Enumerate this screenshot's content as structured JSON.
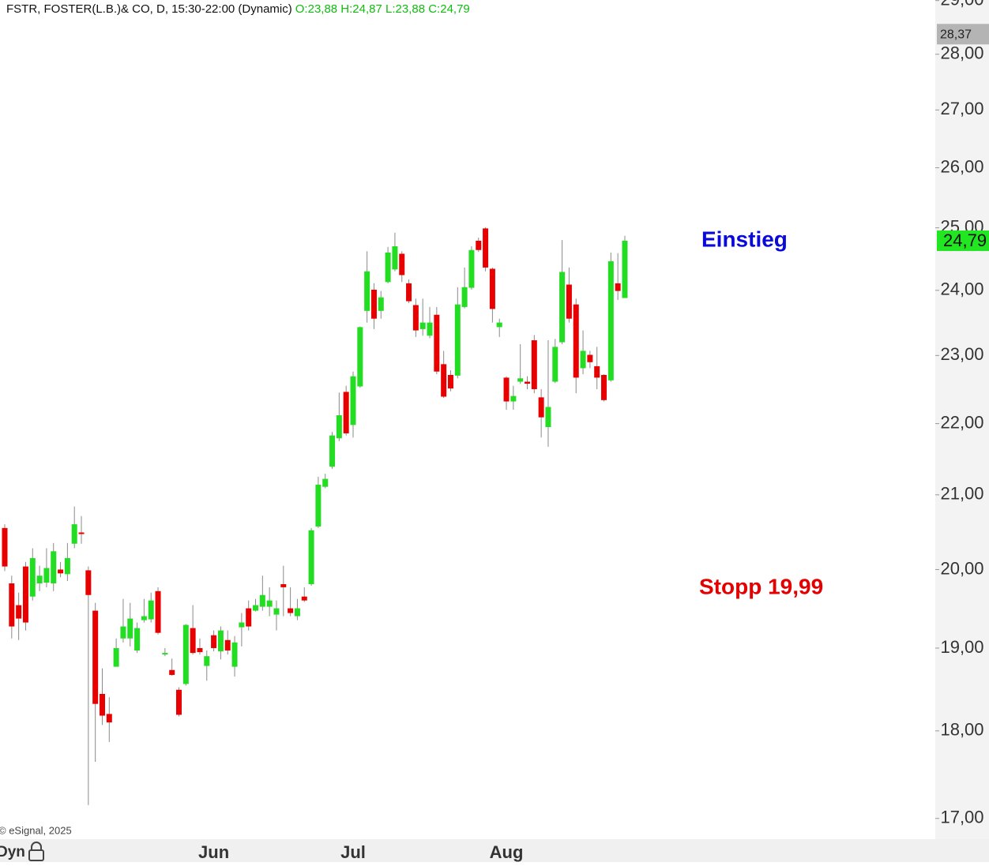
{
  "chart_data": {
    "type": "candlestick",
    "title": "FSTR, FOSTER(L.B.)& CO, D, 15:30-22:00 (Dynamic)",
    "ohlc_label": "O:23,88 H:24,87 L:23,88 C:24,79",
    "copyright": "© eSignal, 2025",
    "mode_label": "Dyn",
    "log_scale": true,
    "up_color": "#22dd22",
    "down_color": "#e80000",
    "categories": [
      null,
      null,
      null,
      null,
      null,
      null,
      null,
      null,
      null,
      null,
      null,
      null,
      null,
      null,
      null,
      null,
      null,
      null,
      null,
      null,
      null,
      null,
      null,
      null,
      null,
      null,
      null,
      null,
      null,
      null,
      "Jun",
      null,
      null,
      null,
      null,
      null,
      null,
      null,
      null,
      null,
      null,
      null,
      null,
      null,
      null,
      null,
      null,
      null,
      null,
      null,
      "Jul",
      null,
      null,
      null,
      null,
      null,
      null,
      null,
      null,
      null,
      null,
      null,
      null,
      null,
      null,
      null,
      null,
      null,
      null,
      null,
      null,
      null,
      "Aug",
      null,
      null,
      null,
      null,
      null,
      null,
      null,
      null,
      null,
      null,
      null,
      null,
      null,
      null,
      null,
      null,
      null
    ],
    "open": [
      20.55,
      19.82,
      19.54,
      20.04,
      19.65,
      19.82,
      19.83,
      19.82,
      20.0,
      19.94,
      20.34,
      20.49,
      19.99,
      19.47,
      18.44,
      18.2,
      18.77,
      19.12,
      19.12,
      18.97,
      19.35,
      19.36,
      19.72,
      18.94,
      18.73,
      18.49,
      18.56,
      19.25,
      19.0,
      18.78,
      19.16,
      18.96,
      19.1,
      18.77,
      19.26,
      19.5,
      19.47,
      19.52,
      19.52,
      19.42,
      19.81,
      19.5,
      19.4,
      19.65,
      19.81,
      20.57,
      21.11,
      21.39,
      21.79,
      22.46,
      21.98,
      22.54,
      23.68,
      24.01,
      23.68,
      24.13,
      24.33,
      24.58,
      24.11,
      23.77,
      23.4,
      23.3,
      23.62,
      22.87,
      22.71,
      22.7,
      23.74,
      24.04,
      24.79,
      24.99,
      24.34,
      23.43,
      22.67,
      22.32,
      22.61,
      22.61,
      23.23,
      22.38,
      21.95,
      22.61,
      23.2,
      24.09,
      23.78,
      22.81,
      23.01,
      22.84,
      22.71,
      22.63,
      24.11,
      23.88
    ],
    "high": [
      20.6,
      19.92,
      19.7,
      20.1,
      20.28,
      20.05,
      20.28,
      20.35,
      20.1,
      20.35,
      20.84,
      20.71,
      20.04,
      19.57,
      18.75,
      18.4,
      19.12,
      19.62,
      19.57,
      19.32,
      19.62,
      19.7,
      19.77,
      19.0,
      18.87,
      18.52,
      19.3,
      19.54,
      19.12,
      18.97,
      19.22,
      19.27,
      19.22,
      19.15,
      19.44,
      19.6,
      19.62,
      19.92,
      19.77,
      19.6,
      20.05,
      19.77,
      19.62,
      19.77,
      20.55,
      21.25,
      21.29,
      21.88,
      22.45,
      22.55,
      22.76,
      23.44,
      24.62,
      24.11,
      23.99,
      24.69,
      24.92,
      24.62,
      24.17,
      23.87,
      23.87,
      23.74,
      23.74,
      23.07,
      22.78,
      24.05,
      24.36,
      24.7,
      24.84,
      25.01,
      24.36,
      23.56,
      22.69,
      22.55,
      23.17,
      22.69,
      23.31,
      22.5,
      23.23,
      23.25,
      24.8,
      24.36,
      23.87,
      23.38,
      23.07,
      23.13,
      22.72,
      24.6,
      24.59,
      24.87
    ],
    "low": [
      19.98,
      19.12,
      19.1,
      19.22,
      19.6,
      19.72,
      19.77,
      19.72,
      19.9,
      19.85,
      20.28,
      20.34,
      17.15,
      17.64,
      18.07,
      17.87,
      18.77,
      19.07,
      19.02,
      18.94,
      19.32,
      19.32,
      19.17,
      18.9,
      18.66,
      18.17,
      18.54,
      18.92,
      18.92,
      18.6,
      18.96,
      18.86,
      18.92,
      18.65,
      19.02,
      19.22,
      19.46,
      19.47,
      19.4,
      19.22,
      19.4,
      19.4,
      19.35,
      19.58,
      19.79,
      20.55,
      21.09,
      21.36,
      21.75,
      21.83,
      21.8,
      22.52,
      23.5,
      23.4,
      23.56,
      24.11,
      24.3,
      24.13,
      23.8,
      23.28,
      23.3,
      23.26,
      22.72,
      22.37,
      22.47,
      22.66,
      23.72,
      24.01,
      24.61,
      24.3,
      23.5,
      23.28,
      22.2,
      22.2,
      22.58,
      22.5,
      22.44,
      21.8,
      21.67,
      22.59,
      23.17,
      23.5,
      22.44,
      22.72,
      22.81,
      22.5,
      22.32,
      22.61,
      23.85,
      23.88
    ],
    "close": [
      20.04,
      19.27,
      19.37,
      19.32,
      20.15,
      19.92,
      20.02,
      20.24,
      19.95,
      20.15,
      20.6,
      20.47,
      19.67,
      18.32,
      18.18,
      18.1,
      19.0,
      19.27,
      19.37,
      19.25,
      19.4,
      19.6,
      19.19,
      18.94,
      18.67,
      18.19,
      19.29,
      18.94,
      18.95,
      18.9,
      19.0,
      19.22,
      18.97,
      19.07,
      19.32,
      19.27,
      19.54,
      19.67,
      19.6,
      19.5,
      19.77,
      19.44,
      19.5,
      19.6,
      20.52,
      21.14,
      21.22,
      21.83,
      22.12,
      21.86,
      22.69,
      23.43,
      24.3,
      23.56,
      23.89,
      24.6,
      24.7,
      24.24,
      23.83,
      23.38,
      23.5,
      23.5,
      22.76,
      22.39,
      22.51,
      23.78,
      24.05,
      24.64,
      24.64,
      24.36,
      23.71,
      23.5,
      22.32,
      22.4,
      22.66,
      22.58,
      22.5,
      22.09,
      22.24,
      23.13,
      24.29,
      23.56,
      22.67,
      23.07,
      22.9,
      22.67,
      22.34,
      24.46,
      23.99,
      24.79
    ],
    "ylim": [
      16.78,
      29.01
    ],
    "yticks": [
      {
        "value": 17,
        "label": "17,00"
      },
      {
        "value": 18,
        "label": "18,00"
      },
      {
        "value": 19,
        "label": "19,00"
      },
      {
        "value": 20,
        "label": "20,00"
      },
      {
        "value": 21,
        "label": "21,00"
      },
      {
        "value": 22,
        "label": "22,00"
      },
      {
        "value": 23,
        "label": "23,00"
      },
      {
        "value": 24,
        "label": "24,00"
      },
      {
        "value": 25,
        "label": "25,00"
      },
      {
        "value": 26,
        "label": "26,00"
      },
      {
        "value": 27,
        "label": "27,00"
      },
      {
        "value": 28,
        "label": "28,00"
      },
      {
        "value": 29,
        "label": "29,00"
      }
    ],
    "price_markers": [
      {
        "value": 28.37,
        "label": "28,37",
        "color": "#b4b4b4",
        "text_color": "#222222"
      },
      {
        "value": 24.79,
        "label": "24,79",
        "color": "#22e622",
        "text_color": "#111111"
      }
    ],
    "annotations": [
      {
        "text": "Einstieg",
        "color": "#0a0ad8"
      },
      {
        "text": "Stopp 19,99",
        "color": "#e40000"
      }
    ]
  }
}
